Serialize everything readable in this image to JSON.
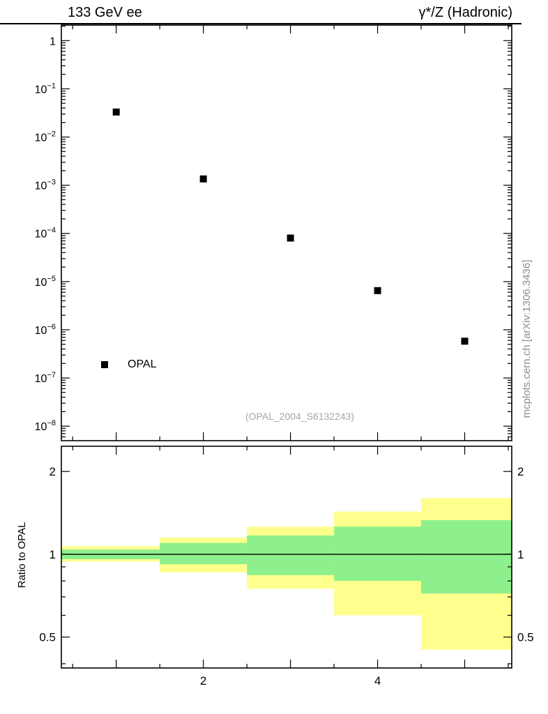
{
  "side_label": "mcplots.cern.ch [arXiv:1306.3436]",
  "colors": {
    "band_yellow": "#ffff8e",
    "band_green": "#8df08c",
    "marker": "#000000",
    "frame": "#000000",
    "watermark_text": "#a6a6a6",
    "side_text": "#8c8c8c"
  },
  "chart_data": [
    {
      "type": "scatter",
      "panel": "main",
      "title": "133 GeV ee",
      "title_right": "γ*/Z (Hadronic)",
      "annotation": "(OPAL_2004_S6132243)",
      "legend": [
        "OPAL"
      ],
      "marker": "filled-square",
      "x": [
        1,
        2,
        3,
        4,
        5
      ],
      "y": [
        0.033,
        0.00135,
        8e-05,
        6.5e-06,
        5.8e-07
      ],
      "xlim": [
        0.37,
        5.54
      ],
      "ylim": [
        5e-09,
        2.1
      ],
      "yscale": "log",
      "xscale": "linear",
      "yticks_exponents": [
        0,
        -1,
        -2,
        -3,
        -4,
        -5,
        -6,
        -7,
        -8
      ],
      "xticks_major": [
        1,
        2,
        3,
        4,
        5
      ],
      "grid": false
    },
    {
      "type": "band-ratio",
      "panel": "ratio",
      "ylabel": "Ratio to OPAL",
      "yscale": "log",
      "ylim": [
        0.386,
        2.47
      ],
      "yticks": [
        0.5,
        1,
        2
      ],
      "yticks_minor": [
        0.4,
        0.6,
        0.7,
        0.8,
        0.9
      ],
      "xticks_labeled": [
        2,
        4
      ],
      "bin_edges": [
        0.37,
        1.5,
        2.5,
        3.5,
        4.5,
        5.54
      ],
      "bands": {
        "yellow": {
          "lo": [
            0.94,
            0.86,
            0.75,
            0.6,
            0.45
          ],
          "hi": [
            1.07,
            1.15,
            1.26,
            1.43,
            1.6
          ]
        },
        "green": {
          "lo": [
            0.96,
            0.92,
            0.84,
            0.8,
            0.72
          ],
          "hi": [
            1.04,
            1.1,
            1.17,
            1.26,
            1.33
          ]
        }
      },
      "reference_line": 1
    }
  ]
}
